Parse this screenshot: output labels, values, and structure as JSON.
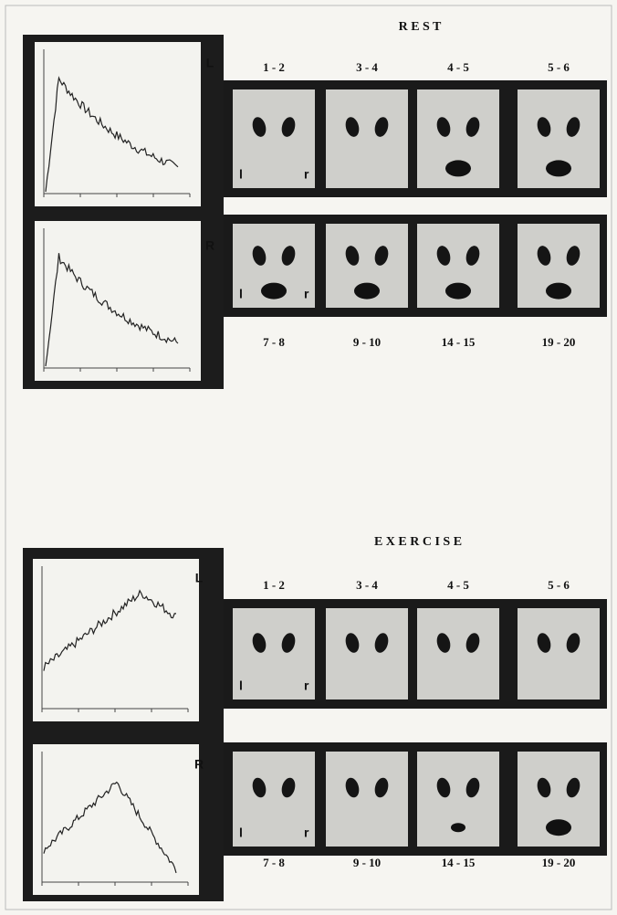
{
  "sections": [
    {
      "title": "R E S T",
      "curve_labels": [
        "L",
        "R"
      ],
      "top_row": [
        "1 - 2",
        "3 - 4",
        "4 - 5",
        "5 - 6"
      ],
      "bottom_row": [
        "7 - 8",
        "9 - 10",
        "14 - 15",
        "19 - 20"
      ],
      "side_marks": [
        "l",
        "r"
      ]
    },
    {
      "title": "E X E R C I S E",
      "curve_labels": [
        "L",
        "R"
      ],
      "top_row": [
        "1 - 2",
        "3 - 4",
        "4 - 5",
        "5 - 6"
      ],
      "bottom_row": [
        "7 - 8",
        "9 - 10",
        "14 - 15",
        "19 - 20"
      ],
      "side_marks": [
        "l",
        "r"
      ]
    }
  ]
}
